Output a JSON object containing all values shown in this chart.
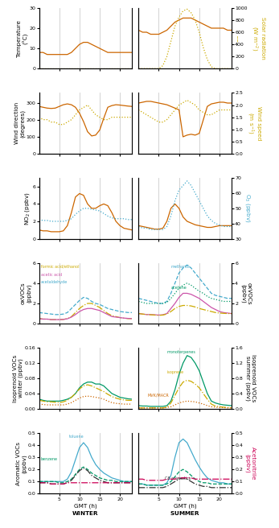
{
  "hours": [
    0,
    1,
    2,
    3,
    4,
    5,
    6,
    7,
    8,
    9,
    10,
    11,
    12,
    13,
    14,
    15,
    16,
    17,
    18,
    19,
    20,
    21,
    22,
    23
  ],
  "winter": {
    "temperature": [
      8,
      8,
      7,
      7,
      7,
      7,
      7,
      7,
      8,
      10,
      12,
      13,
      13,
      12,
      11,
      10,
      9,
      8,
      8,
      8,
      8,
      8,
      8,
      8
    ],
    "solar_rad": [
      0,
      0,
      0,
      0,
      0,
      0,
      0,
      0,
      0,
      0,
      0,
      0,
      0,
      0,
      0,
      0,
      0,
      0,
      0,
      0,
      0,
      0,
      0,
      0
    ],
    "wind_dir": [
      280,
      275,
      270,
      268,
      270,
      280,
      290,
      295,
      290,
      275,
      240,
      190,
      130,
      105,
      110,
      140,
      210,
      275,
      285,
      290,
      288,
      285,
      282,
      280
    ],
    "wind_speed": [
      1.5,
      1.4,
      1.4,
      1.3,
      1.3,
      1.2,
      1.2,
      1.3,
      1.4,
      1.6,
      1.8,
      1.9,
      2.0,
      1.8,
      1.6,
      1.5,
      1.4,
      1.4,
      1.5,
      1.5,
      1.5,
      1.5,
      1.5,
      1.5
    ],
    "NO2": [
      1.0,
      0.9,
      0.9,
      0.8,
      0.8,
      0.8,
      0.9,
      1.5,
      3.0,
      4.8,
      5.2,
      5.0,
      4.0,
      3.5,
      3.5,
      3.8,
      4.0,
      3.8,
      3.0,
      2.0,
      1.5,
      1.2,
      1.1,
      1.0
    ],
    "O3": [
      2.2,
      2.1,
      2.1,
      2.0,
      2.0,
      2.0,
      2.0,
      2.1,
      2.3,
      2.8,
      3.2,
      3.5,
      3.5,
      3.4,
      3.3,
      3.2,
      2.9,
      2.6,
      2.4,
      2.3,
      2.3,
      2.3,
      2.2,
      2.2
    ],
    "formic_acid": [
      0.5,
      0.45,
      0.45,
      0.4,
      0.4,
      0.4,
      0.42,
      0.5,
      0.7,
      1.1,
      1.5,
      1.8,
      2.0,
      2.0,
      1.8,
      1.6,
      1.3,
      1.0,
      0.8,
      0.7,
      0.6,
      0.55,
      0.5,
      0.5
    ],
    "acetic_acid": [
      0.5,
      0.45,
      0.45,
      0.4,
      0.4,
      0.4,
      0.42,
      0.48,
      0.65,
      0.9,
      1.2,
      1.4,
      1.5,
      1.5,
      1.4,
      1.3,
      1.1,
      0.9,
      0.7,
      0.65,
      0.6,
      0.55,
      0.52,
      0.5
    ],
    "acetaldehyde": [
      1.1,
      1.05,
      1.0,
      0.95,
      0.9,
      0.9,
      0.95,
      1.1,
      1.5,
      1.9,
      2.3,
      2.6,
      2.5,
      2.2,
      2.0,
      1.9,
      1.7,
      1.5,
      1.4,
      1.3,
      1.2,
      1.15,
      1.1,
      1.1
    ],
    "monoterpenes": [
      0.025,
      0.022,
      0.02,
      0.02,
      0.02,
      0.02,
      0.022,
      0.025,
      0.03,
      0.04,
      0.055,
      0.065,
      0.07,
      0.07,
      0.065,
      0.065,
      0.06,
      0.05,
      0.04,
      0.035,
      0.03,
      0.028,
      0.026,
      0.025
    ],
    "isoprene": [
      0.022,
      0.02,
      0.018,
      0.018,
      0.017,
      0.016,
      0.018,
      0.022,
      0.03,
      0.04,
      0.052,
      0.06,
      0.063,
      0.06,
      0.055,
      0.05,
      0.045,
      0.038,
      0.032,
      0.028,
      0.025,
      0.023,
      0.022,
      0.022
    ],
    "MVK_MACR": [
      0.012,
      0.011,
      0.01,
      0.01,
      0.01,
      0.01,
      0.01,
      0.012,
      0.016,
      0.022,
      0.028,
      0.032,
      0.033,
      0.032,
      0.03,
      0.028,
      0.025,
      0.02,
      0.016,
      0.014,
      0.013,
      0.012,
      0.012,
      0.012
    ],
    "toluene": [
      0.1,
      0.1,
      0.1,
      0.1,
      0.1,
      0.1,
      0.1,
      0.12,
      0.18,
      0.28,
      0.38,
      0.42,
      0.38,
      0.3,
      0.24,
      0.2,
      0.17,
      0.15,
      0.13,
      0.12,
      0.11,
      0.1,
      0.1,
      0.1
    ],
    "benzene": [
      0.1,
      0.1,
      0.1,
      0.1,
      0.1,
      0.09,
      0.09,
      0.1,
      0.12,
      0.16,
      0.2,
      0.22,
      0.2,
      0.17,
      0.15,
      0.13,
      0.12,
      0.11,
      0.11,
      0.1,
      0.1,
      0.1,
      0.1,
      0.1
    ],
    "C8_aromatics": [
      0.09,
      0.09,
      0.09,
      0.08,
      0.08,
      0.08,
      0.08,
      0.09,
      0.11,
      0.15,
      0.19,
      0.21,
      0.19,
      0.15,
      0.13,
      0.11,
      0.1,
      0.09,
      0.09,
      0.09,
      0.09,
      0.09,
      0.09,
      0.09
    ],
    "acetonitrile": [
      0.09,
      0.09,
      0.09,
      0.08,
      0.08,
      0.08,
      0.08,
      0.09,
      0.09,
      0.09,
      0.09,
      0.09,
      0.09,
      0.09,
      0.09,
      0.09,
      0.09,
      0.09,
      0.09,
      0.09,
      0.09,
      0.09,
      0.09,
      0.09
    ]
  },
  "summer": {
    "temperature": [
      19,
      18,
      18,
      17,
      17,
      17,
      18,
      19,
      21,
      23,
      24,
      25,
      25,
      25,
      24,
      23,
      22,
      21,
      20,
      20,
      20,
      20,
      19,
      19
    ],
    "solar_rad": [
      0,
      0,
      0,
      0,
      0,
      0,
      50,
      200,
      450,
      700,
      850,
      950,
      980,
      920,
      800,
      600,
      350,
      150,
      30,
      0,
      0,
      0,
      0,
      0
    ],
    "wind_dir": [
      300,
      305,
      310,
      310,
      305,
      300,
      295,
      290,
      280,
      270,
      260,
      100,
      110,
      115,
      110,
      120,
      200,
      280,
      295,
      300,
      305,
      305,
      300,
      300
    ],
    "wind_speed": [
      1.8,
      1.7,
      1.6,
      1.5,
      1.4,
      1.3,
      1.3,
      1.4,
      1.6,
      1.8,
      2.0,
      2.1,
      2.2,
      2.1,
      2.0,
      1.8,
      1.7,
      1.6,
      1.6,
      1.7,
      1.8,
      1.8,
      1.8,
      1.8
    ],
    "NO2": [
      1.5,
      1.4,
      1.3,
      1.2,
      1.1,
      1.1,
      1.2,
      2.0,
      3.5,
      4.0,
      3.5,
      2.5,
      2.0,
      1.8,
      1.6,
      1.5,
      1.4,
      1.3,
      1.3,
      1.4,
      1.5,
      1.5,
      1.5,
      1.5
    ],
    "O3": [
      38,
      37,
      37,
      36,
      36,
      36,
      36,
      38,
      45,
      55,
      62,
      65,
      68,
      65,
      60,
      55,
      50,
      45,
      42,
      40,
      39,
      38,
      38,
      38
    ],
    "methanol": [
      2.5,
      2.4,
      2.3,
      2.2,
      2.1,
      2.0,
      2.0,
      2.2,
      3.0,
      4.0,
      5.0,
      5.5,
      5.8,
      5.5,
      5.0,
      4.5,
      4.0,
      3.5,
      3.0,
      2.8,
      2.7,
      2.6,
      2.5,
      2.5
    ],
    "acetone": [
      2.2,
      2.1,
      2.0,
      2.0,
      2.0,
      2.0,
      2.0,
      2.1,
      2.5,
      3.0,
      3.5,
      3.8,
      4.0,
      3.8,
      3.5,
      3.2,
      3.0,
      2.7,
      2.5,
      2.4,
      2.3,
      2.2,
      2.2,
      2.2
    ],
    "acetic_acid_s": [
      1.0,
      0.95,
      0.9,
      0.9,
      0.88,
      0.85,
      0.88,
      1.0,
      1.5,
      2.0,
      2.6,
      3.0,
      3.0,
      2.9,
      2.7,
      2.5,
      2.2,
      1.9,
      1.6,
      1.4,
      1.2,
      1.1,
      1.05,
      1.0
    ],
    "acetaldehyde_s": [
      1.0,
      0.95,
      0.9,
      0.88,
      0.85,
      0.82,
      0.85,
      0.95,
      1.2,
      1.5,
      1.7,
      1.8,
      1.8,
      1.75,
      1.65,
      1.5,
      1.4,
      1.3,
      1.2,
      1.1,
      1.05,
      1.02,
      1.0,
      1.0
    ],
    "monoterpenes_s": [
      0.08,
      0.07,
      0.07,
      0.06,
      0.06,
      0.06,
      0.06,
      0.08,
      0.2,
      0.5,
      0.9,
      1.2,
      1.4,
      1.35,
      1.2,
      1.0,
      0.7,
      0.4,
      0.2,
      0.15,
      0.12,
      0.1,
      0.09,
      0.08
    ],
    "isoprene_s": [
      0.02,
      0.02,
      0.02,
      0.02,
      0.02,
      0.02,
      0.02,
      0.04,
      0.15,
      0.35,
      0.55,
      0.7,
      0.75,
      0.72,
      0.65,
      0.55,
      0.4,
      0.25,
      0.12,
      0.07,
      0.05,
      0.04,
      0.03,
      0.02
    ],
    "MVK_MACR_s": [
      0.02,
      0.02,
      0.02,
      0.02,
      0.02,
      0.02,
      0.02,
      0.03,
      0.05,
      0.1,
      0.15,
      0.18,
      0.2,
      0.19,
      0.18,
      0.15,
      0.12,
      0.08,
      0.05,
      0.04,
      0.03,
      0.03,
      0.02,
      0.02
    ],
    "toluene_s": [
      0.08,
      0.08,
      0.07,
      0.07,
      0.07,
      0.07,
      0.07,
      0.09,
      0.15,
      0.3,
      0.42,
      0.45,
      0.42,
      0.35,
      0.28,
      0.22,
      0.17,
      0.13,
      0.11,
      0.1,
      0.09,
      0.09,
      0.08,
      0.08
    ],
    "benzene_s": [
      0.08,
      0.08,
      0.07,
      0.07,
      0.07,
      0.07,
      0.07,
      0.08,
      0.1,
      0.14,
      0.18,
      0.2,
      0.18,
      0.15,
      0.12,
      0.1,
      0.09,
      0.09,
      0.08,
      0.08,
      0.08,
      0.08,
      0.08,
      0.08
    ],
    "C8_aromatics_s": [
      0.05,
      0.05,
      0.05,
      0.05,
      0.05,
      0.05,
      0.05,
      0.06,
      0.08,
      0.1,
      0.12,
      0.13,
      0.12,
      0.1,
      0.08,
      0.07,
      0.06,
      0.06,
      0.05,
      0.05,
      0.05,
      0.05,
      0.05,
      0.05
    ],
    "acetonitrile_s": [
      0.12,
      0.12,
      0.11,
      0.11,
      0.11,
      0.11,
      0.11,
      0.12,
      0.12,
      0.12,
      0.13,
      0.13,
      0.13,
      0.13,
      0.12,
      0.12,
      0.12,
      0.12,
      0.12,
      0.12,
      0.12,
      0.12,
      0.12,
      0.12
    ]
  },
  "colors": {
    "temperature": "#CC6600",
    "solar_rad": "#CCAA00",
    "wind_dir": "#CC6600",
    "wind_speed": "#CCAA00",
    "NO2": "#CC6600",
    "O3": "#44AACC",
    "formic_acid": "#CCAA00",
    "acetic_acid": "#CC55AA",
    "acetaldehyde": "#44AACC",
    "methanol": "#44AACC",
    "acetone_s": "#009966",
    "monoterpenes": "#009966",
    "isoprene": "#CCAA00",
    "MVK_MACR": "#CC6600",
    "toluene": "#44AACC",
    "benzene": "#009966",
    "C8_aromatics": "#333333",
    "acetonitrile": "#CC0055"
  },
  "vlines": [
    5,
    10,
    15,
    20
  ],
  "vline_color": "#cccccc",
  "xlim": [
    0,
    23
  ],
  "xticks": [
    5,
    10,
    15,
    20
  ]
}
